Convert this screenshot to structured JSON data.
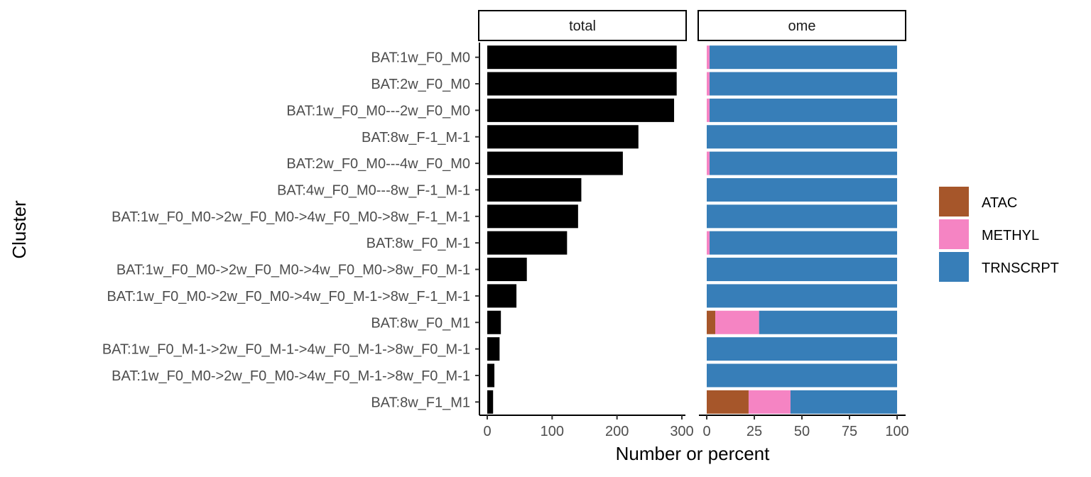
{
  "chart_data": {
    "type": "bar",
    "orientation": "horizontal",
    "xlabel": "Number or percent",
    "ylabel": "Cluster",
    "categories": [
      "BAT:1w_F0_M0",
      "BAT:2w_F0_M0",
      "BAT:1w_F0_M0---2w_F0_M0",
      "BAT:8w_F-1_M-1",
      "BAT:2w_F0_M0---4w_F0_M0",
      "BAT:4w_F0_M0---8w_F-1_M-1",
      "BAT:1w_F0_M0->2w_F0_M0->4w_F0_M0->8w_F-1_M-1",
      "BAT:8w_F0_M-1",
      "BAT:1w_F0_M0->2w_F0_M0->4w_F0_M0->8w_F0_M-1",
      "BAT:1w_F0_M0->2w_F0_M0->4w_F0_M-1->8w_F-1_M-1",
      "BAT:8w_F0_M1",
      "BAT:1w_F0_M-1->2w_F0_M-1->4w_F0_M-1->8w_F0_M-1",
      "BAT:1w_F0_M0->2w_F0_M0->4w_F0_M-1->8w_F0_M-1",
      "BAT:8w_F1_M1"
    ],
    "panels": [
      {
        "label": "total",
        "type": "bar",
        "xlim": [
          0,
          300
        ],
        "xticks": [
          0,
          100,
          200,
          300
        ],
        "color": "#000000",
        "values": [
          292,
          292,
          288,
          233,
          209,
          145,
          140,
          123,
          61,
          45,
          21,
          19,
          11,
          9
        ]
      },
      {
        "label": "ome",
        "type": "stacked_bar",
        "xlim": [
          0,
          100
        ],
        "xticks": [
          0,
          25,
          50,
          75,
          100
        ],
        "series": [
          {
            "name": "ATAC",
            "color": "#A6562A",
            "values": [
              0,
              0,
              0,
              0,
              0,
              0,
              0,
              0,
              0,
              0,
              4.5,
              0,
              0,
              22
            ]
          },
          {
            "name": "METHYL",
            "color": "#F584C3",
            "values": [
              1.5,
              1.5,
              1.5,
              0,
              1.5,
              0,
              0,
              1.5,
              0,
              0,
              23,
              0,
              0,
              22
            ]
          },
          {
            "name": "TRNSCRPT",
            "color": "#377EB8",
            "values": [
              98.5,
              98.5,
              98.5,
              100,
              98.5,
              100,
              100,
              98.5,
              100,
              100,
              72.5,
              100,
              100,
              56
            ]
          }
        ]
      }
    ],
    "legend": {
      "position": "right",
      "entries": [
        "ATAC",
        "METHYL",
        "TRNSCRPT"
      ]
    },
    "grid": false
  }
}
